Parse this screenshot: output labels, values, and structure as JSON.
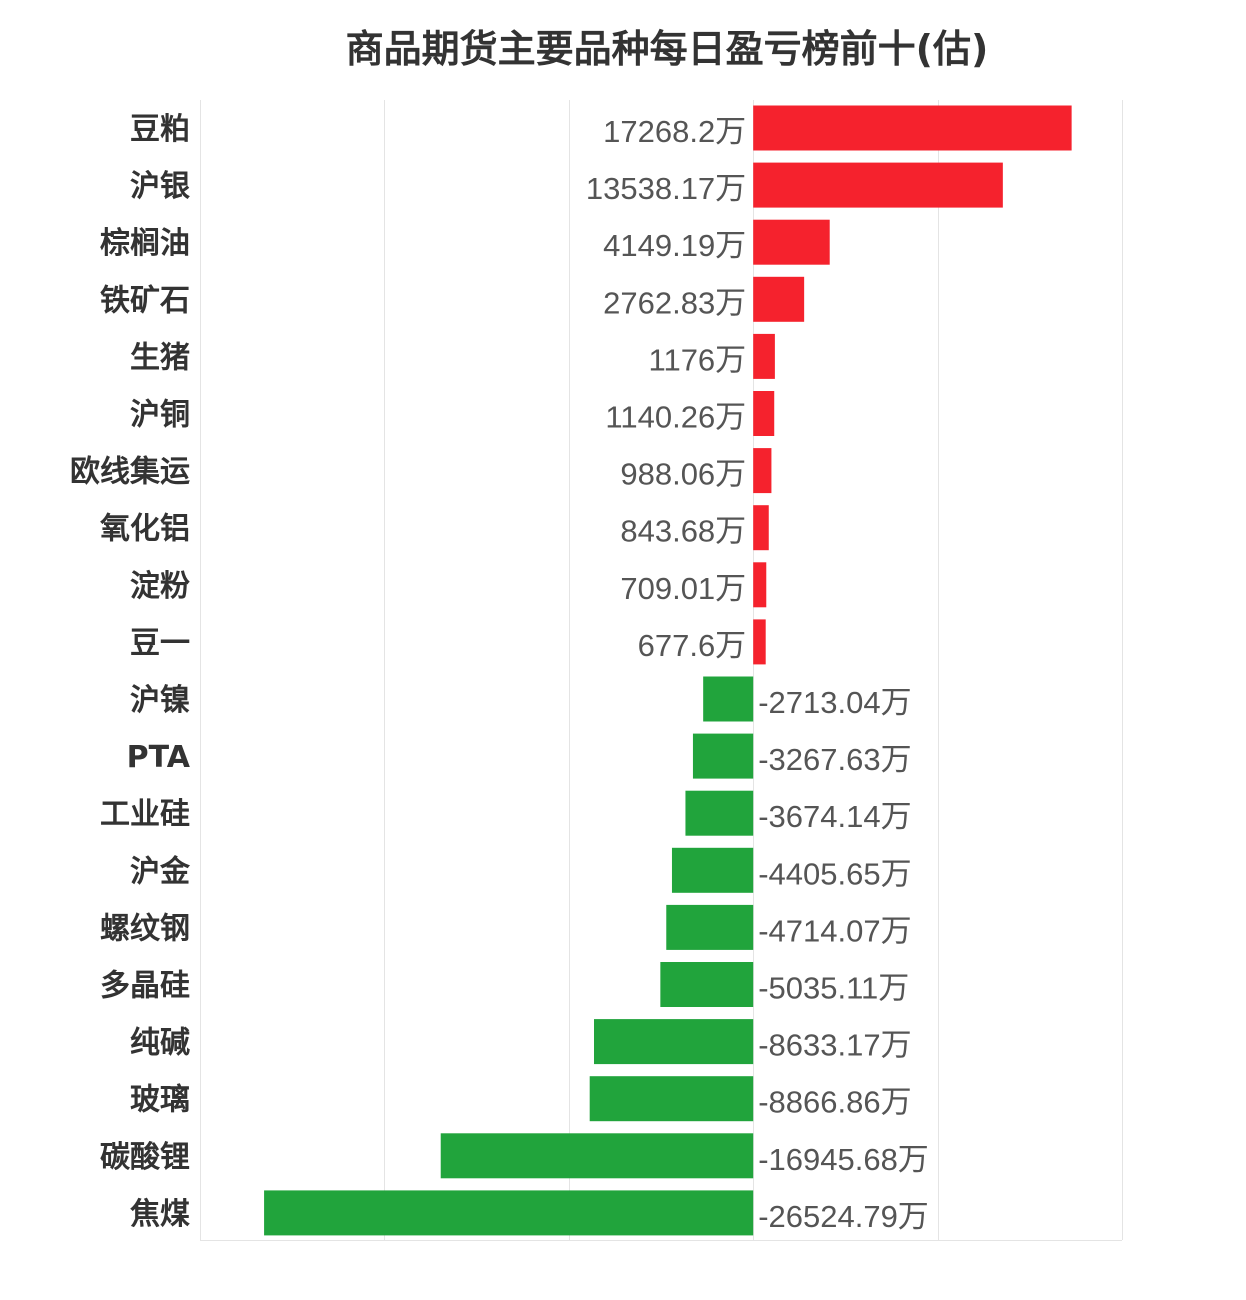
{
  "chart_data": {
    "type": "bar",
    "orientation": "horizontal",
    "title": "商品期货主要品种每日盈亏榜前十(估)",
    "unit": "万",
    "categories": [
      "豆粕",
      "沪银",
      "棕榈油",
      "铁矿石",
      "生猪",
      "沪铜",
      "欧线集运",
      "氧化铝",
      "淀粉",
      "豆一",
      "沪镍",
      "PTA",
      "工业硅",
      "沪金",
      "螺纹钢",
      "多晶硅",
      "纯碱",
      "玻璃",
      "碳酸锂",
      "焦煤"
    ],
    "values": [
      17268.2,
      13538.17,
      4149.19,
      2762.83,
      1176,
      1140.26,
      988.06,
      843.68,
      709.01,
      677.6,
      -2713.04,
      -3267.63,
      -3674.14,
      -4405.65,
      -4714.07,
      -5035.11,
      -8633.17,
      -8866.86,
      -16945.68,
      -26524.79
    ],
    "value_labels": [
      "17268.2万",
      "13538.17万",
      "4149.19万",
      "2762.83万",
      "1176万",
      "1140.26万",
      "988.06万",
      "843.68万",
      "709.01万",
      "677.6万",
      "-2713.04万",
      "-3267.63万",
      "-3674.14万",
      "-4405.65万",
      "-4714.07万",
      "-5035.11万",
      "-8633.17万",
      "-8866.86万",
      "-16945.68万",
      "-26524.79万"
    ],
    "xlim": [
      -30000,
      20000
    ],
    "grid": true,
    "colors": {
      "positive": "#f5222d",
      "negative": "#21a43c"
    }
  }
}
